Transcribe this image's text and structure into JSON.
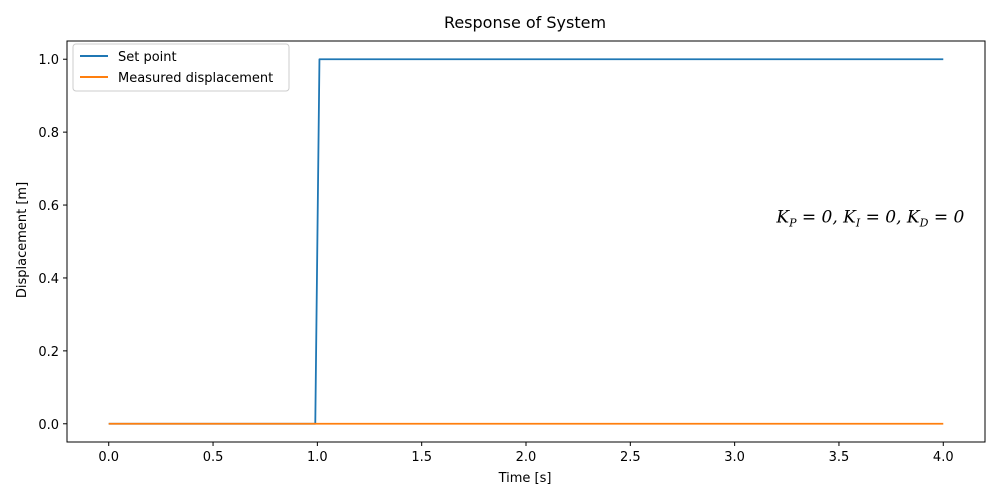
{
  "chart_data": {
    "type": "line",
    "title": "Response of System",
    "xlabel": "Time [s]",
    "ylabel": "Displacement [m]",
    "xlim": [
      -0.2,
      4.2
    ],
    "ylim": [
      -0.05,
      1.05
    ],
    "xticks": [
      0.0,
      0.5,
      1.0,
      1.5,
      2.0,
      2.5,
      3.0,
      3.5,
      4.0
    ],
    "xtick_labels": [
      "0.0",
      "0.5",
      "1.0",
      "1.5",
      "2.0",
      "2.5",
      "3.0",
      "3.5",
      "4.0"
    ],
    "yticks": [
      0.0,
      0.2,
      0.4,
      0.6,
      0.8,
      1.0
    ],
    "ytick_labels": [
      "0.0",
      "0.2",
      "0.4",
      "0.6",
      "0.8",
      "1.0"
    ],
    "grid": false,
    "legend_position": "top-left",
    "series": [
      {
        "name": "Set point",
        "color": "#1f77b4",
        "x": [
          0.0,
          0.99,
          1.01,
          4.0
        ],
        "y": [
          0.0,
          0.0,
          1.0,
          1.0
        ]
      },
      {
        "name": "Measured displacement",
        "color": "#ff7f0e",
        "x": [
          0.0,
          4.0
        ],
        "y": [
          0.0,
          0.0
        ]
      }
    ],
    "annotation": {
      "K_P": "0",
      "K_I": "0",
      "K_D": "0",
      "x": 3.2,
      "y": 0.5
    }
  }
}
